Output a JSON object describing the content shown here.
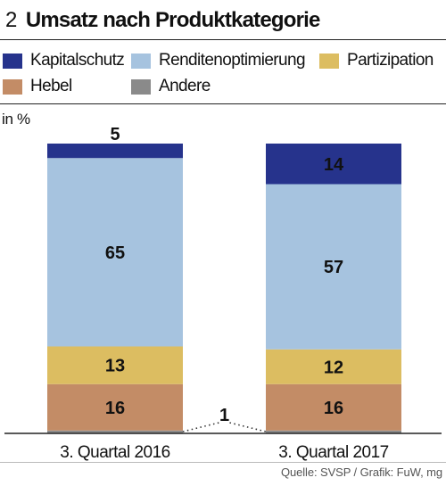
{
  "header": {
    "figure_number": "2",
    "title": "Umsatz nach Produktkategorie"
  },
  "legend": [
    {
      "label": "Kapitalschutz",
      "color": "#26338c"
    },
    {
      "label": "Renditenoptimierung",
      "color": "#a6c3df"
    },
    {
      "label": "Partizipation",
      "color": "#dcbd61"
    },
    {
      "label": "Hebel",
      "color": "#c38c66"
    },
    {
      "label": "Andere",
      "color": "#8a8a8a"
    }
  ],
  "unit_label": "in %",
  "source": "Quelle: SVSP / Grafik: FuW, mg",
  "chart_data": {
    "type": "bar",
    "stacked": true,
    "categories": [
      "3. Quartal 2016",
      "3. Quartal 2017"
    ],
    "ylabel": "in %",
    "ylim": [
      0,
      100
    ],
    "series": [
      {
        "name": "Andere",
        "values": [
          1,
          1
        ],
        "color": "#8a8a8a",
        "labels": [
          "1",
          ""
        ]
      },
      {
        "name": "Hebel",
        "values": [
          16,
          16
        ],
        "color": "#c38c66",
        "labels": [
          "16",
          "16"
        ]
      },
      {
        "name": "Partizipation",
        "values": [
          13,
          12
        ],
        "color": "#dcbd61",
        "labels": [
          "13",
          "12"
        ]
      },
      {
        "name": "Renditenoptimierung",
        "values": [
          65,
          57
        ],
        "color": "#a6c3df",
        "labels": [
          "65",
          "57"
        ]
      },
      {
        "name": "Kapitalschutz",
        "values": [
          5,
          14
        ],
        "color": "#26338c",
        "labels": [
          "5",
          "14"
        ]
      }
    ]
  }
}
